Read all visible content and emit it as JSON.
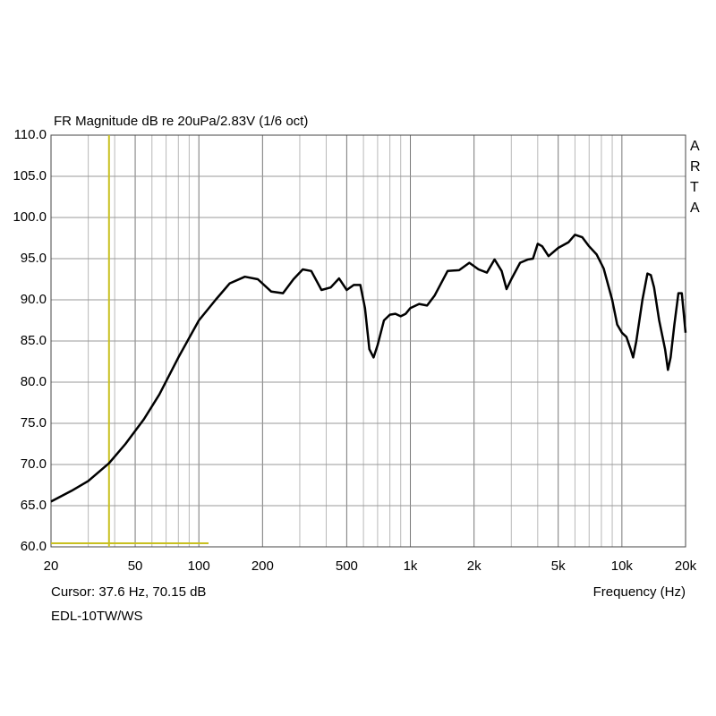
{
  "chart_data": {
    "type": "line",
    "title": "FR Magnitude dB re 20uPa/2.83V (1/6 oct)",
    "brand": "ARTA",
    "xlabel": "Frequency (Hz)",
    "cursor": {
      "x": 37.6,
      "y": 70.15,
      "label": "Cursor: 37.6 Hz, 70.15 dB",
      "color": "#c8c020"
    },
    "device": "EDL-10TW/WS",
    "xscale": "log",
    "grid": true,
    "xlim": [
      20,
      20000
    ],
    "ylim": [
      60,
      110
    ],
    "xticks": [
      20,
      50,
      100,
      200,
      500,
      {
        "value": 1000,
        "label": "1k"
      },
      {
        "value": 2000,
        "label": "2k"
      },
      {
        "value": 5000,
        "label": "5k"
      },
      {
        "value": 10000,
        "label": "10k"
      },
      {
        "value": 20000,
        "label": "20k"
      }
    ],
    "x_minor_ticks": [
      30,
      40,
      60,
      70,
      80,
      90,
      300,
      400,
      600,
      700,
      800,
      900,
      3000,
      4000,
      6000,
      7000,
      8000,
      9000
    ],
    "yticks": [
      {
        "value": 60,
        "label": "60.0"
      },
      {
        "value": 65,
        "label": "65.0"
      },
      {
        "value": 70,
        "label": "70.0"
      },
      {
        "value": 75,
        "label": "75.0"
      },
      {
        "value": 80,
        "label": "80.0"
      },
      {
        "value": 85,
        "label": "85.0"
      },
      {
        "value": 90,
        "label": "90.0"
      },
      {
        "value": 95,
        "label": "95.0"
      },
      {
        "value": 100,
        "label": "100.0"
      },
      {
        "value": 105,
        "label": "105.0"
      },
      {
        "value": 110,
        "label": "110.0"
      }
    ],
    "x": [
      20,
      25,
      30,
      37.6,
      45,
      55,
      65,
      80,
      100,
      120,
      140,
      165,
      190,
      220,
      250,
      280,
      310,
      340,
      380,
      420,
      460,
      500,
      540,
      580,
      610,
      640,
      670,
      700,
      750,
      800,
      850,
      900,
      950,
      1000,
      1100,
      1200,
      1300,
      1500,
      1700,
      1900,
      2100,
      2300,
      2500,
      2700,
      2850,
      3000,
      3300,
      3600,
      3800,
      4000,
      4200,
      4500,
      5000,
      5600,
      6000,
      6500,
      7000,
      7600,
      8200,
      9000,
      9500,
      10000,
      10500,
      11000,
      11300,
      11700,
      12500,
      13200,
      13700,
      14200,
      15000,
      16000,
      16500,
      17000,
      17700,
      18500,
      19200,
      20000
    ],
    "series": [
      {
        "color": "#000000",
        "values": [
          65.5,
          66.8,
          68.0,
          70.15,
          72.5,
          75.5,
          78.5,
          83,
          87.5,
          90,
          92,
          92.8,
          92.5,
          91,
          90.8,
          92.5,
          93.7,
          93.5,
          91.2,
          91.5,
          92.6,
          91.2,
          91.8,
          91.8,
          89,
          84,
          83,
          84.5,
          87.5,
          88.2,
          88.3,
          88,
          88.3,
          89,
          89.5,
          89.3,
          90.5,
          93.5,
          93.6,
          94.5,
          93.7,
          93.3,
          94.9,
          93.5,
          91.3,
          92.5,
          94.5,
          94.9,
          95,
          96.8,
          96.5,
          95.3,
          96.3,
          97,
          97.9,
          97.6,
          96.5,
          95.5,
          93.8,
          90,
          87,
          86,
          85.5,
          84,
          83,
          85,
          90,
          93.2,
          93,
          91.5,
          87.5,
          84,
          81.5,
          83,
          87,
          90.8,
          90.8,
          86
        ]
      }
    ]
  }
}
